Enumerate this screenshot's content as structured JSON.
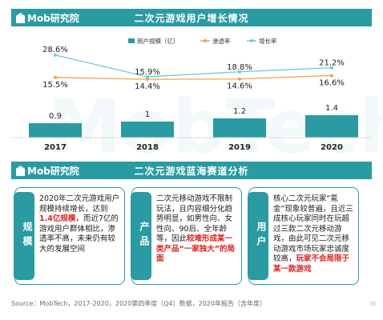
{
  "brand": {
    "logo_text": "Mob研究院",
    "watermark_text": "MobTech"
  },
  "section1": {
    "title": "二次元游戏用户增长情况"
  },
  "section2": {
    "title": "二次元游戏蓝海赛道分析"
  },
  "chart_data": {
    "type": "bar",
    "categories": [
      "2017",
      "2018",
      "2019",
      "2020"
    ],
    "series": [
      {
        "name": "用户规模（亿）",
        "type": "bar",
        "values": [
          0.9,
          1,
          1.2,
          1.4
        ],
        "labels": [
          "0.9",
          "1",
          "1.2",
          "1.4"
        ],
        "color": "#2a9ba3"
      },
      {
        "name": "渗透率",
        "type": "line",
        "values": [
          15.5,
          14.4,
          14.6,
          16.6
        ],
        "labels": [
          "15.5%",
          "14.4%",
          "14.6%",
          "16.6%"
        ],
        "color": "#f0a055"
      },
      {
        "name": "增长率",
        "type": "line",
        "values": [
          28.6,
          15.9,
          18.8,
          21.2
        ],
        "labels": [
          "28.6%",
          "15.9%",
          "18.8%",
          "21.2%"
        ],
        "color": "#66ccd4"
      }
    ],
    "grid": false,
    "legend_position": "top-center"
  },
  "cards": [
    {
      "label": "规模",
      "segments": [
        {
          "text": "2020年二次元游戏用户规模持续增长，达到",
          "highlight": false
        },
        {
          "text": "1.4亿规模",
          "highlight": true
        },
        {
          "text": "，而近7亿的游戏用户群体相比，渗透率不高，未来仍有较大的发展空间",
          "highlight": false
        }
      ]
    },
    {
      "label": "产品",
      "segments": [
        {
          "text": "二次元移动游戏不限制玩法，且内容细分化趋势明显，如男性向、女性向、90后、全年龄等，因此",
          "highlight": false
        },
        {
          "text": "较难形成某一类产品“一家独大”的局面",
          "highlight": true
        }
      ]
    },
    {
      "label": "用户",
      "segments": [
        {
          "text": "核心二次元玩家“氪金”现象较普遍，且近三成核心玩家同时在玩超过三款二次元移动游戏，由此可见二次元移动游戏市场玩家忠诚度较高，",
          "highlight": false
        },
        {
          "text": "玩家不会局限于某一款游戏",
          "highlight": true
        }
      ]
    }
  ],
  "footer": {
    "source": "Source：MobTech，2017-2020，2020第四季度（Q4）数据，2020年报告（含年度）",
    "page_number": "30"
  }
}
